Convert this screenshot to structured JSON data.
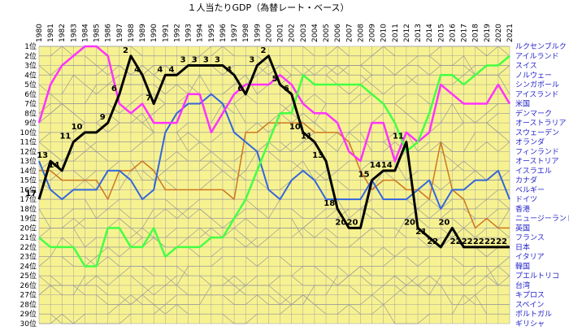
{
  "chart_data": {
    "type": "line",
    "title": "１人当たりGDP（為替レート・ベース）",
    "xlabel": "",
    "ylabel": "",
    "x": [
      "1980",
      "1981",
      "1982",
      "1983",
      "1984",
      "1985",
      "1986",
      "1987",
      "1988",
      "1989",
      "1990",
      "1991",
      "1992",
      "1993",
      "1994",
      "1995",
      "1996",
      "1997",
      "1998",
      "1999",
      "2000",
      "2001",
      "2002",
      "2003",
      "2004",
      "2005",
      "2006",
      "2007",
      "2008",
      "2009",
      "2010",
      "2011",
      "2012",
      "2013",
      "2014",
      "2015",
      "2016",
      "2017",
      "2018",
      "2019",
      "2020",
      "2021"
    ],
    "y_ticks": [
      "1位",
      "2位",
      "3位",
      "4位",
      "5位",
      "6位",
      "7位",
      "8位",
      "9位",
      "10位",
      "11位",
      "12位",
      "13位",
      "14位",
      "15位",
      "16位",
      "17位",
      "18位",
      "19位",
      "20位",
      "21位",
      "22位",
      "23位",
      "24位",
      "25位",
      "26位",
      "27位",
      "28位",
      "29位",
      "30位"
    ],
    "ylim": [
      1,
      30
    ],
    "y_inverted": true,
    "grid": true,
    "legend": "right",
    "colors": {
      "plot_bg": "#f7f291",
      "grid": "#a0a0a0",
      "right_labels": "#1e1ec8"
    },
    "right_labels": [
      "ルクセンブルク",
      "アイルランド",
      "スイス",
      "ノルウェー",
      "シンガポール",
      "アイスランド",
      "米国",
      "デンマーク",
      "オーストラリア",
      "スウェーデン",
      "オランダ",
      "フィンランド",
      "オーストリア",
      "イスラエル",
      "カナダ",
      "ベルギー",
      "ドイツ",
      "香港",
      "ニュージーランド",
      "英国",
      "フランス",
      "日本",
      "イタリア",
      "韓国",
      "プエルトリコ",
      "台湾",
      "キプロス",
      "スペイン",
      "ポルトガル",
      "ギリシャ"
    ],
    "series": [
      {
        "name": "日本",
        "color": "#000000",
        "width": 3,
        "values": [
          17,
          13,
          14,
          11,
          10,
          10,
          9,
          6,
          2,
          4,
          7,
          4,
          4,
          3,
          3,
          3,
          3,
          4,
          6,
          3,
          2,
          5,
          6,
          10,
          11,
          13,
          18,
          20,
          20,
          15,
          14,
          14,
          11,
          20,
          21,
          22,
          20,
          22,
          22,
          22,
          22,
          22
        ],
        "labels": [
          17,
          13,
          14,
          11,
          10,
          null,
          9,
          6,
          2,
          4,
          7,
          4,
          4,
          3,
          3,
          3,
          3,
          4,
          6,
          3,
          2,
          5,
          6,
          10,
          11,
          13,
          18,
          20,
          20,
          15,
          14,
          14,
          11,
          20,
          21,
          22,
          20,
          22,
          22,
          22,
          22,
          22
        ]
      },
      {
        "name": "スイス",
        "color": "#ff33ff",
        "width": 2.5,
        "values": [
          9,
          5,
          3,
          2,
          1,
          1,
          2,
          7,
          8,
          7,
          9,
          9,
          9,
          6,
          6,
          10,
          8,
          6,
          5,
          5,
          5,
          4,
          5,
          7,
          8,
          8,
          9,
          12,
          13,
          9,
          9,
          13,
          10,
          11,
          10,
          5,
          6,
          7,
          7,
          7,
          5,
          7
        ]
      },
      {
        "name": "米国",
        "color": "#44ff44",
        "width": 2.5,
        "values": [
          21,
          22,
          22,
          22,
          24,
          24,
          20,
          20,
          22,
          22,
          20,
          23,
          22,
          22,
          22,
          21,
          21,
          19,
          17,
          14,
          11,
          8,
          8,
          4,
          5,
          5,
          5,
          5,
          5,
          6,
          7,
          9,
          12,
          11,
          8,
          4,
          4,
          5,
          4,
          3,
          3,
          2
        ]
      },
      {
        "name": "ドイツ",
        "color": "#3366dd",
        "width": 2,
        "values": [
          13,
          16,
          17,
          16,
          16,
          16,
          14,
          14,
          15,
          17,
          16,
          10,
          8,
          7,
          7,
          6,
          7,
          10,
          11,
          12,
          16,
          17,
          15,
          14,
          15,
          17,
          17,
          17,
          17,
          15,
          17,
          17,
          17,
          16,
          15,
          18,
          16,
          16,
          15,
          15,
          14,
          17
        ]
      },
      {
        "name": "英国",
        "color": "#cc7722",
        "width": 1.5,
        "values": [
          14,
          14,
          15,
          15,
          15,
          15,
          17,
          14,
          14,
          13,
          14,
          16,
          16,
          16,
          16,
          16,
          16,
          17,
          10,
          10,
          9,
          9,
          9,
          9,
          10,
          10,
          10,
          11,
          14,
          16,
          15,
          15,
          16,
          16,
          17,
          11,
          16,
          17,
          20,
          19,
          20,
          20
        ]
      }
    ]
  }
}
